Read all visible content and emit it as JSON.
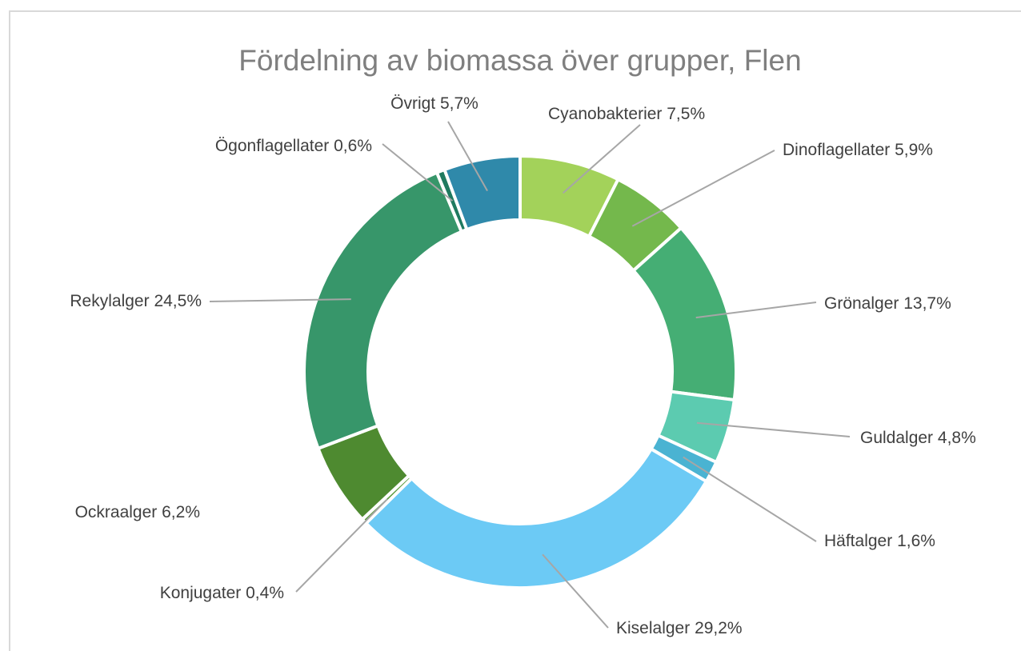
{
  "chart_data": {
    "type": "doughnut",
    "title": "Fördelning av biomassa över grupper, Flen",
    "categories": [
      "Cyanobakterier",
      "Dinoflagellater",
      "Grönalger",
      "Guldalger",
      "Häftalger",
      "Kiselalger",
      "Konjugater",
      "Ockraalger",
      "Rekylalger",
      "Ögonflagellater",
      "Övrigt"
    ],
    "values": [
      7.5,
      5.9,
      13.7,
      4.8,
      1.6,
      29.2,
      0.4,
      6.2,
      24.5,
      0.6,
      5.7
    ],
    "value_labels": [
      "7,5%",
      "5,9%",
      "13,7%",
      "4,8%",
      "1,6%",
      "29,2%",
      "0,4%",
      "6,2%",
      "24,5%",
      "0,6%",
      "5,7%"
    ],
    "colors": [
      "#a3d25a",
      "#74b84c",
      "#45ae74",
      "#5ccbb0",
      "#4ab3d2",
      "#6ccaf5",
      "#5a9a3e",
      "#4e8a30",
      "#37966a",
      "#1f7a60",
      "#2f89aa"
    ]
  }
}
